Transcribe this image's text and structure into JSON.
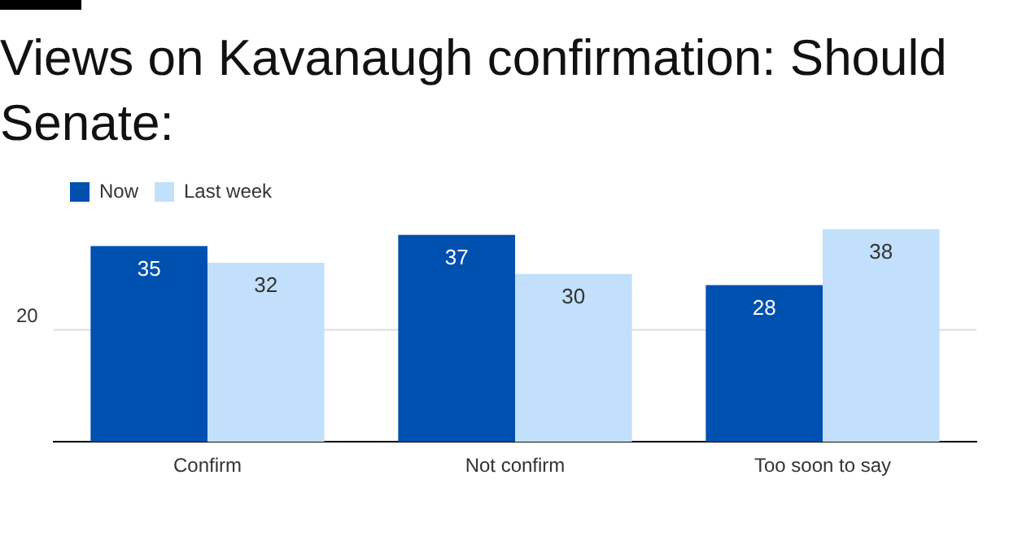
{
  "chart_data": {
    "type": "bar",
    "title": "Views on Kavanaugh confirmation: Should Senate:",
    "categories": [
      "Confirm",
      "Not confirm",
      "Too soon to say"
    ],
    "series": [
      {
        "name": "Now",
        "color": "#0050b0",
        "values": [
          35,
          37,
          28
        ]
      },
      {
        "name": "Last week",
        "color": "#c2e0fb",
        "values": [
          32,
          30,
          38
        ]
      }
    ],
    "ref_lines": [
      {
        "axis": "y",
        "value": 20,
        "label": "20",
        "color": "#dddddd"
      }
    ],
    "legend": "top left",
    "data_labels": true
  }
}
